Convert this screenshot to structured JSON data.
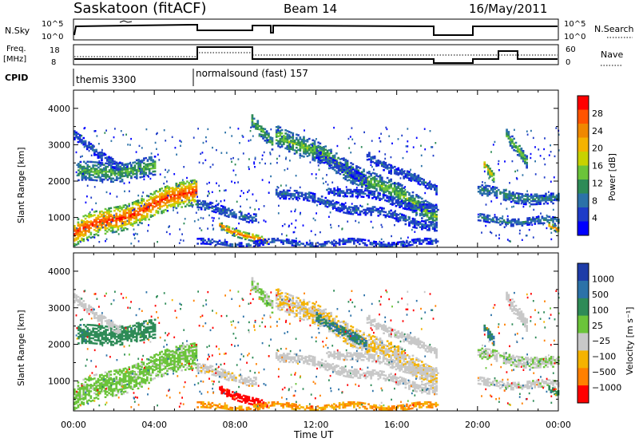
{
  "header": {
    "station": "Saskatoon (fitACF)",
    "beam": "Beam 14",
    "date": "16/May/2011"
  },
  "panels": {
    "nsky_label": "N.Sky",
    "nsky_ticks": [
      "10^5",
      "10^0"
    ],
    "nsearch_label": "N.Search",
    "nsearch_ticks": [
      "10^5",
      "10^0"
    ],
    "freq_label_1": "Freq.",
    "freq_label_2": "[MHz]",
    "freq_ticks": [
      "18",
      "8"
    ],
    "nave_label": "Nave",
    "nave_ticks": [
      "60",
      "0"
    ],
    "cpid_label": "CPID",
    "cpid_1": "themis 3300",
    "cpid_2": "normalsound (fast) 157"
  },
  "axes": {
    "ylabel": "Slant Range [km]",
    "yticks": [
      "4000",
      "3000",
      "2000",
      "1000"
    ],
    "xlabel": "Time UT",
    "xticks": [
      "00:00",
      "04:00",
      "08:00",
      "12:00",
      "16:00",
      "20:00",
      "00:00"
    ]
  },
  "colorbars": {
    "power_label": "Power [dB]",
    "power_ticks": [
      "28",
      "24",
      "20",
      "16",
      "12",
      "8",
      "4"
    ],
    "power_colors": [
      "#ff0000",
      "#ff5400",
      "#f08800",
      "#f5b300",
      "#c8d200",
      "#6bc43a",
      "#2e8b57",
      "#2c72a8",
      "#1e3cc8",
      "#0000ff"
    ],
    "velocity_label": "Velocity  [m s⁻¹]",
    "velocity_ticks": [
      "1000",
      "500",
      "100",
      "25",
      "−25",
      "−100",
      "−500",
      "−1000"
    ],
    "velocity_colors": [
      "#1e3ca8",
      "#2c72a8",
      "#2e8b57",
      "#6bc43a",
      "#c8c8c8",
      "#f5b300",
      "#ff8000",
      "#ff0000"
    ]
  },
  "chart_data": {
    "type": "heatmap",
    "x_range": [
      "00:00",
      "00:00"
    ],
    "x_hours": [
      0,
      24
    ],
    "y_range_km": [
      180,
      4500
    ],
    "power_range_db": [
      0,
      30
    ],
    "velocity_range": [
      -1000,
      1000
    ],
    "bands": [
      {
        "t": [
          0,
          6.1
        ],
        "r": [
          560,
          1750
        ],
        "width": 700,
        "power": 27,
        "velocity": 40
      },
      {
        "t": [
          0.2,
          4
        ],
        "r": [
          2200,
          2350
        ],
        "width": 500,
        "power": 13,
        "velocity": 200
      },
      {
        "t": [
          0,
          2.3
        ],
        "r": [
          3200,
          2400
        ],
        "width": 250,
        "power": 7,
        "velocity": 5
      },
      {
        "t": [
          6.1,
          9
        ],
        "r": [
          1300,
          1000
        ],
        "width": 250,
        "power": 8,
        "velocity": -10
      },
      {
        "t": [
          7.2,
          9.6
        ],
        "r": [
          800,
          250
        ],
        "width": 200,
        "power": 25,
        "velocity": -350
      },
      {
        "t": [
          8.8,
          9.8
        ],
        "r": [
          3600,
          3000
        ],
        "width": 350,
        "power": 13,
        "velocity": 30
      },
      {
        "t": [
          10,
          18
        ],
        "r": [
          3300,
          1050
        ],
        "width": 550,
        "power": 14,
        "velocity": -20
      },
      {
        "t": [
          10,
          18
        ],
        "r": [
          1700,
          750
        ],
        "width": 250,
        "power": 7,
        "velocity": 0
      },
      {
        "t": [
          12.5,
          18
        ],
        "r": [
          1800,
          1200
        ],
        "width": 200,
        "power": 6,
        "velocity": 0
      },
      {
        "t": [
          12,
          14.5
        ],
        "r": [
          2800,
          1900
        ],
        "width": 250,
        "power": 6,
        "velocity": 300
      },
      {
        "t": [
          14.5,
          18
        ],
        "r": [
          2700,
          1700
        ],
        "width": 250,
        "power": 7,
        "velocity": 5
      },
      {
        "t": [
          20,
          24
        ],
        "r": [
          1700,
          1450
        ],
        "width": 300,
        "power": 10,
        "velocity": 20
      },
      {
        "t": [
          20,
          24
        ],
        "r": [
          950,
          850
        ],
        "width": 200,
        "power": 9,
        "velocity": 10
      },
      {
        "t": [
          23.5,
          24
        ],
        "r": [
          750,
          650
        ],
        "width": 150,
        "power": 25,
        "velocity": 200
      },
      {
        "t": [
          20.3,
          20.8
        ],
        "r": [
          2500,
          2100
        ],
        "width": 250,
        "power": 20,
        "velocity": 300
      },
      {
        "t": [
          21.4,
          22.4
        ],
        "r": [
          3200,
          2500
        ],
        "width": 350,
        "power": 14,
        "velocity": 5
      },
      {
        "t": [
          6.1,
          18
        ],
        "r": [
          280,
          280
        ],
        "width": 150,
        "power": 6,
        "velocity": -60
      }
    ],
    "gaps": [
      [
        9.8,
        10.0
      ],
      [
        18.0,
        20.0
      ]
    ]
  }
}
